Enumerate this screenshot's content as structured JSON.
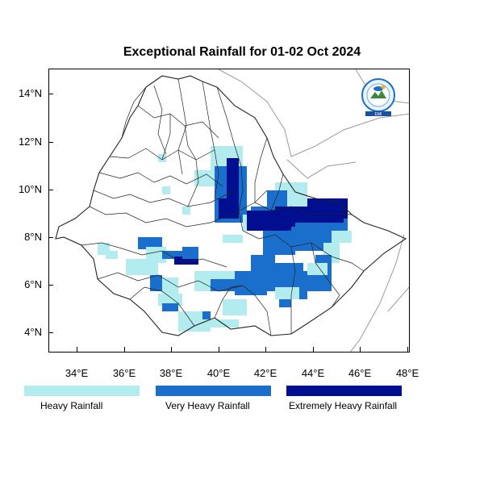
{
  "title": "Exceptional Rainfall for 01-02 Oct 2024",
  "y_axis": {
    "ticks": [
      "4°N",
      "6°N",
      "8°N",
      "10°N",
      "12°N",
      "14°N"
    ]
  },
  "x_axis": {
    "ticks": [
      "34°E",
      "36°E",
      "38°E",
      "40°E",
      "42°E",
      "44°E",
      "46°E",
      "48°E"
    ]
  },
  "legend": [
    {
      "label": "Heavy Rainfall",
      "color": "#b2ecef"
    },
    {
      "label": "Very Heavy Rainfall",
      "color": "#1b6fcc"
    },
    {
      "label": "Extremely Heavy Rainfall",
      "color": "#000f8f"
    }
  ],
  "logo": {
    "text": "Ethiopian Meteorology Institute",
    "small": "EMI"
  },
  "colors": {
    "boundary": "#222222",
    "outer_boundary": "#9a9a9a"
  }
}
